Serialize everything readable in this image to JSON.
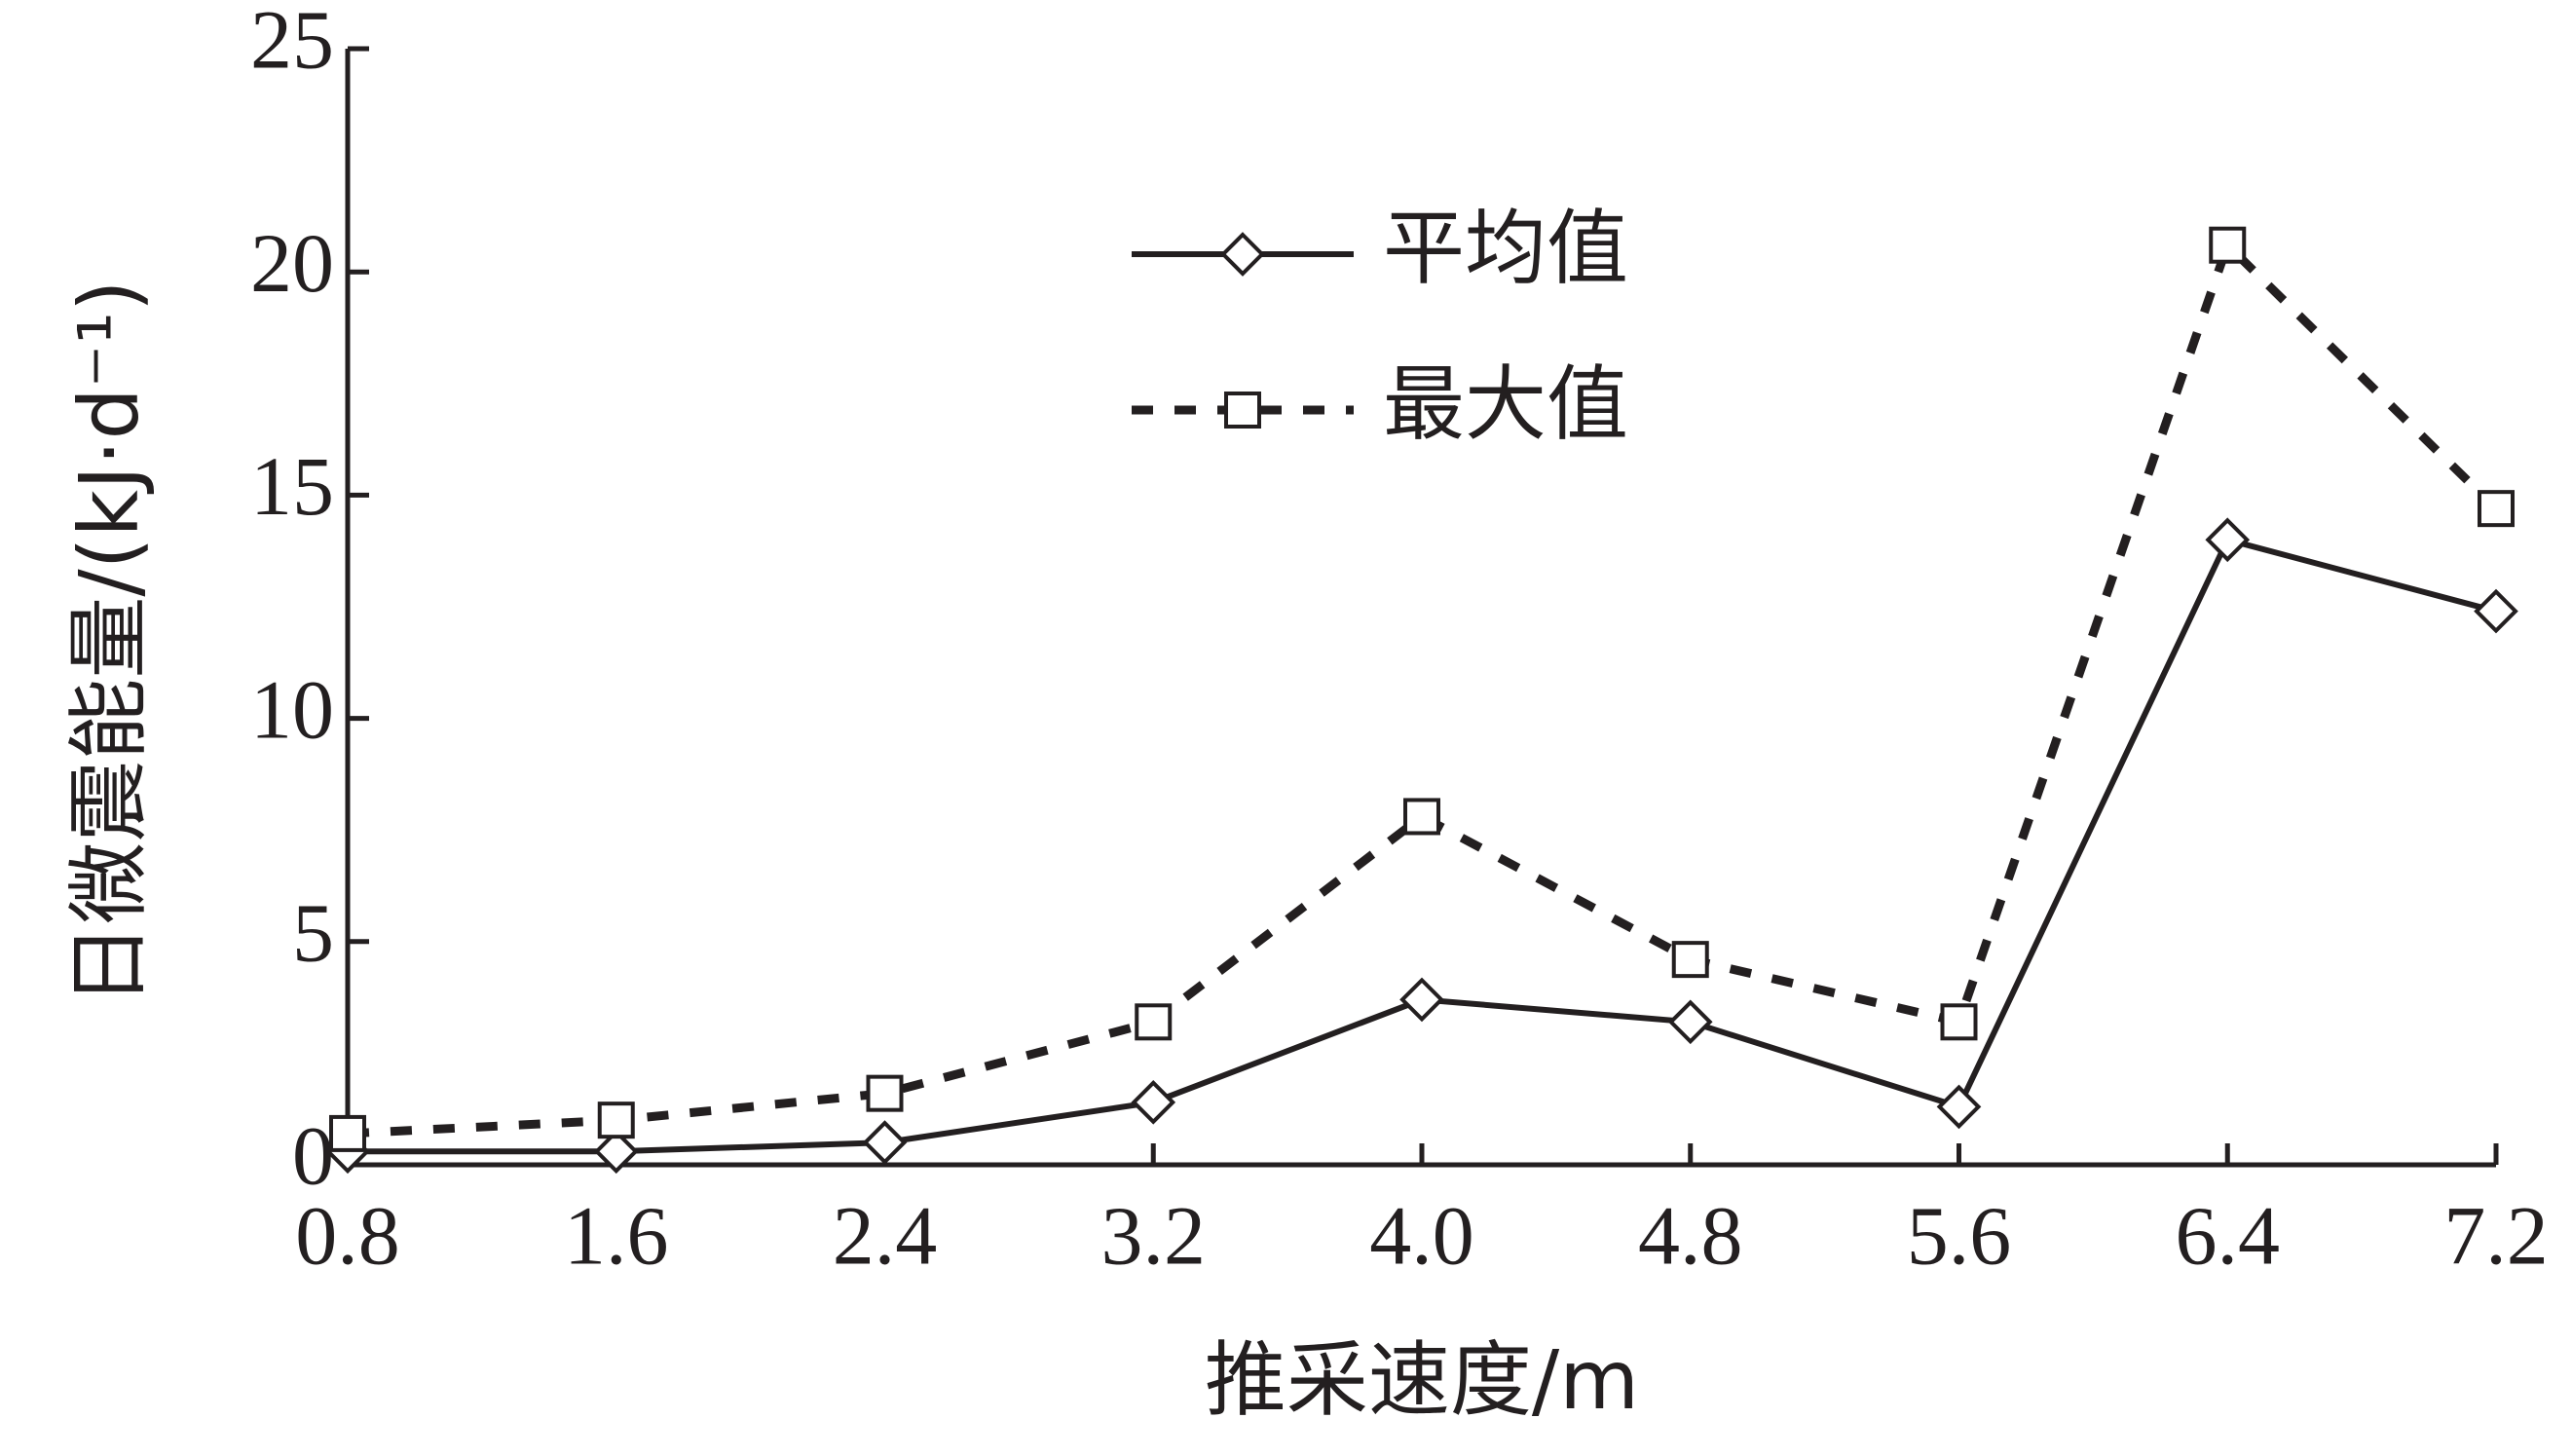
{
  "chart_data": {
    "type": "line",
    "x_label": "推采速度/m",
    "y_label": "日微震能量/(kJ·d⁻¹)",
    "x": [
      0.8,
      1.6,
      2.4,
      3.2,
      4.0,
      4.8,
      5.6,
      6.4,
      7.2
    ],
    "series": [
      {
        "name": "平均值",
        "color": "#231f20",
        "line": "solid",
        "marker": "diamond",
        "values": [
          0.3,
          0.3,
          0.5,
          1.4,
          3.7,
          3.2,
          1.3,
          14.0,
          12.4
        ]
      },
      {
        "name": "最大值",
        "color": "#231f20",
        "line": "dashed",
        "marker": "square",
        "values": [
          0.7,
          1.0,
          1.6,
          3.2,
          7.8,
          4.6,
          3.2,
          20.6,
          14.7
        ]
      }
    ],
    "xlim": [
      0.8,
      7.2
    ],
    "xticks": [
      0.8,
      1.6,
      2.4,
      3.2,
      {
        "value": 4,
        "label": "4.0"
      },
      4.8,
      5.6,
      6.4,
      7.2
    ],
    "ylim": [
      0,
      25
    ],
    "yticks": [
      0,
      5,
      10,
      15,
      20,
      25
    ],
    "grid": false,
    "legend": "top"
  }
}
